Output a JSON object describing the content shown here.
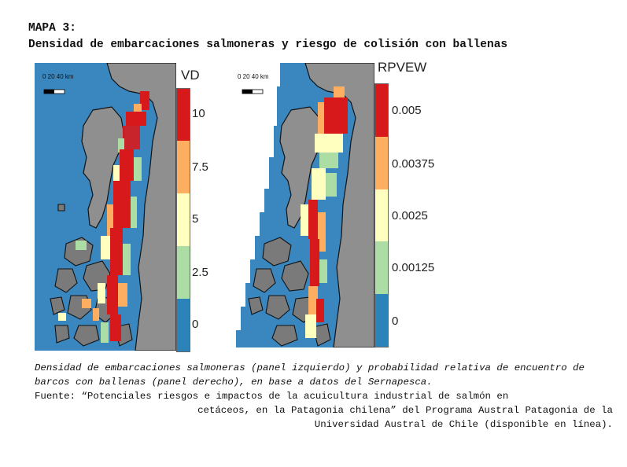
{
  "title": {
    "line1": "MAPA 3:",
    "line2": "Densidad de embarcaciones salmoneras y riesgo de colisión con ballenas"
  },
  "left_panel": {
    "scale_label": "0  20 40 km",
    "legend_title": "VD",
    "legend_labels": [
      "10",
      "7.5",
      "5",
      "2.5",
      "0"
    ],
    "legend_colors": [
      "#d7191c",
      "#fdae61",
      "#ffffbf",
      "#abdda4",
      "#2b83ba"
    ]
  },
  "right_panel": {
    "scale_label": "0  20 40 km",
    "legend_title": "RPVEW",
    "legend_labels": [
      "0.005",
      "0.00375",
      "0.0025",
      "0.00125",
      "0"
    ],
    "legend_colors": [
      "#d7191c",
      "#fdae61",
      "#ffffbf",
      "#abdda4",
      "#2b83ba"
    ]
  },
  "caption": {
    "description": "Densidad de embarcaciones salmoneras (panel izquierdo) y probabilidad relativa de encuentro de barcos con ballenas (panel derecho), en base a datos del Sernapesca.",
    "source_line1": "Fuente: “Potenciales riesgos e impactos de la acuicultura industrial de salmón en",
    "source_line2": "cetáceos, en la Patagonia chilena” del Programa Austral Patagonia de la",
    "source_line3": "Universidad Austral de Chile (disponible en línea)."
  },
  "colors": {
    "sea": "#3a87c0",
    "land": "#8f8f8f",
    "coast": "#111111",
    "high": "#d7191c",
    "mid_high": "#fdae61",
    "mid": "#ffffbf",
    "low": "#abdda4"
  }
}
